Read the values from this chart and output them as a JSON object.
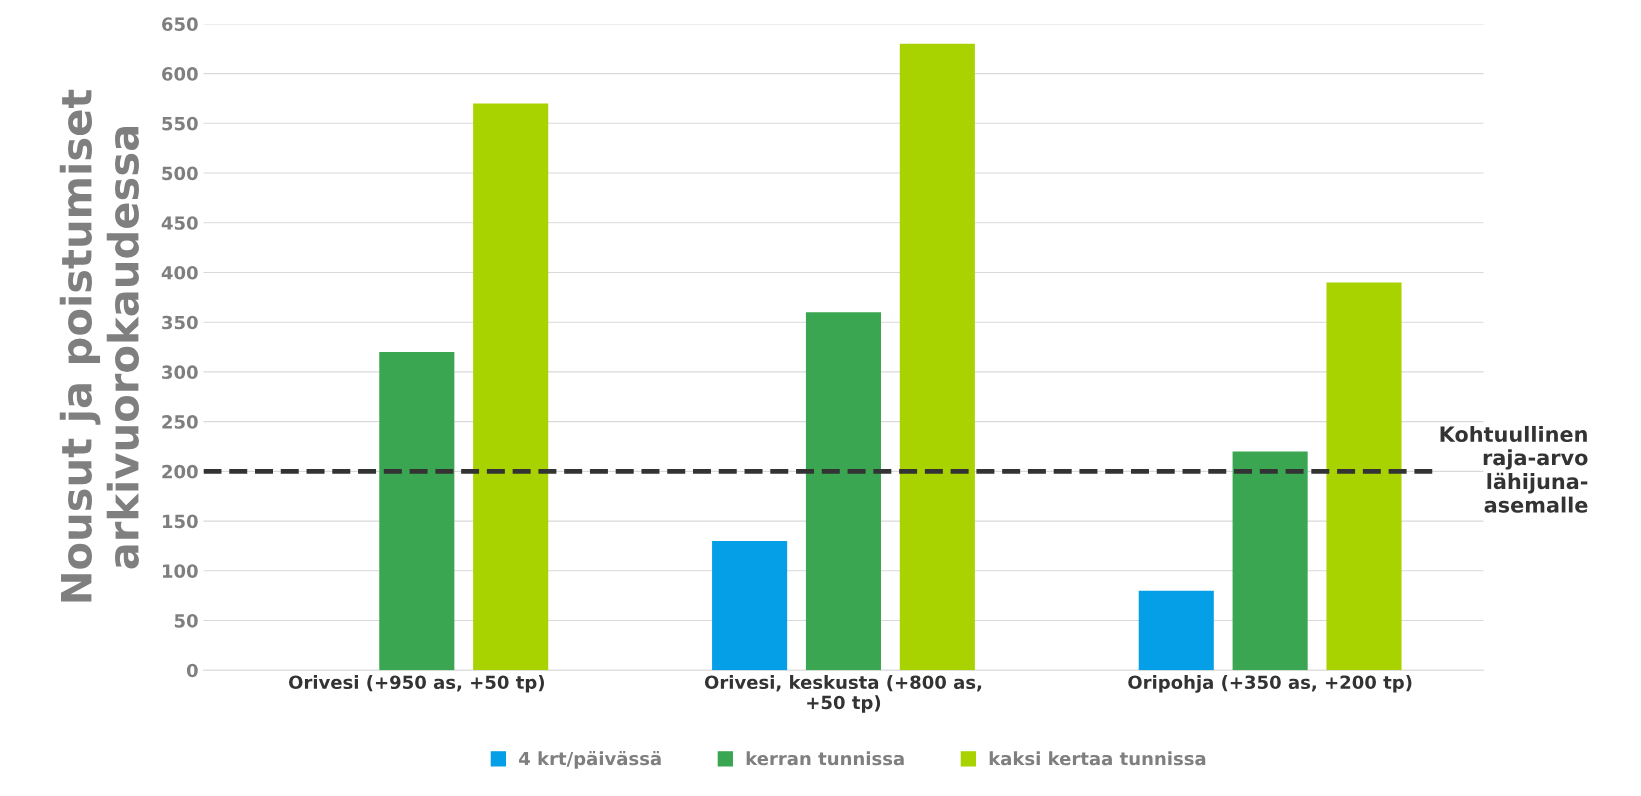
{
  "chart_data": {
    "type": "bar",
    "ylabel": "Nousut ja poistumiset\narkivuorokaudessa",
    "categories": [
      "Orivesi (+950 as, +50 tp)",
      "Orivesi, keskusta (+800 as,\n+50 tp)",
      "Oripohja (+350 as, +200 tp)"
    ],
    "series": [
      {
        "name": "4 krt/päivässä",
        "color": "#059fe8",
        "values": [
          null,
          130,
          80
        ]
      },
      {
        "name": "kerran tunnissa",
        "color": "#3aa651",
        "values": [
          320,
          360,
          220
        ]
      },
      {
        "name": "kaksi kertaa tunnissa",
        "color": "#a8d300",
        "values": [
          570,
          630,
          390
        ]
      }
    ],
    "ylim": [
      0,
      650
    ],
    "yticks": [
      0,
      50,
      100,
      150,
      200,
      250,
      300,
      350,
      400,
      450,
      500,
      550,
      600,
      650
    ],
    "grid": "y",
    "legend": "bottom",
    "ref_lines": [
      {
        "axis": "y",
        "value": 200,
        "label": "Kohtuullinen\nraja-arvo\nlähijuna-\nasemalle",
        "color": "#333333",
        "line_style": "dashed"
      }
    ]
  }
}
